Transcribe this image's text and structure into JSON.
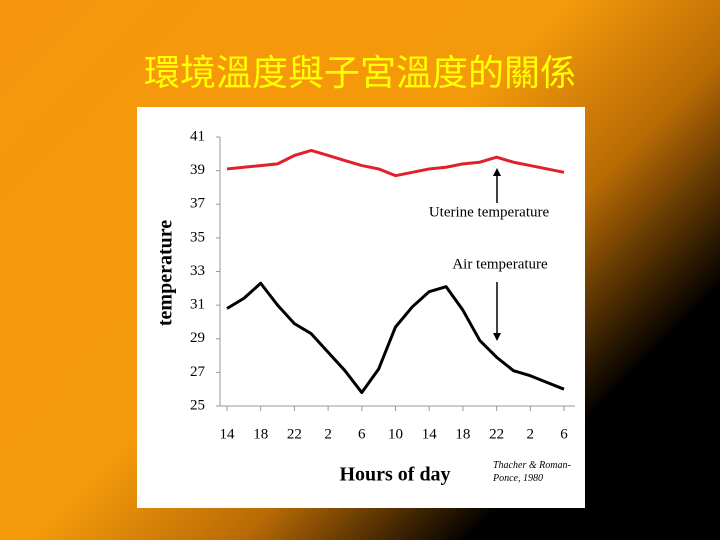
{
  "chart_data": {
    "type": "line",
    "title": "環境溫度與子宮溫度的關係",
    "y_label": "temperature",
    "x_label": "Hours of day",
    "source": "Thacher & Roman-Ponce, 1980",
    "annotations": [
      "Uterine temperature",
      "Air temperature"
    ],
    "categories": [
      "14",
      null,
      "18",
      null,
      "22",
      null,
      "2",
      null,
      "6",
      null,
      "10",
      null,
      "14",
      null,
      "18",
      null,
      "22",
      null,
      "2",
      null,
      "6"
    ],
    "series": [
      {
        "color": "#e0202a",
        "values": [
          39.1,
          39.2,
          39.3,
          39.4,
          39.9,
          40.2,
          39.9,
          39.6,
          39.3,
          39.1,
          38.7,
          38.9,
          39.1,
          39.2,
          39.4,
          39.5,
          39.8,
          39.5,
          39.3,
          39.1,
          38.9
        ]
      },
      {
        "color": "#000000",
        "values": [
          30.8,
          31.4,
          32.3,
          31.0,
          29.9,
          29.3,
          28.2,
          27.1,
          25.8,
          27.2,
          29.7,
          30.9,
          31.8,
          32.1,
          30.7,
          28.9,
          27.9,
          27.1,
          26.8,
          26.4,
          26.0
        ]
      }
    ],
    "ylim": [
      25,
      41
    ],
    "yticks": [
      25,
      27,
      29,
      31,
      33,
      35,
      37,
      39,
      41
    ]
  }
}
